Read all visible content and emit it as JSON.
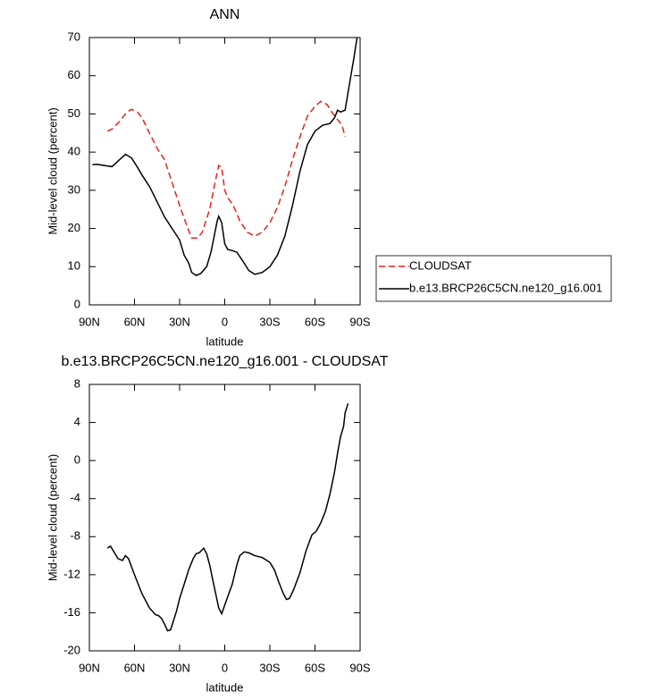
{
  "chart_data": [
    {
      "type": "line",
      "title": "ANN",
      "xlabel": "latitude",
      "ylabel": "Mid-level cloud (percent)",
      "xlim": [
        90,
        -90
      ],
      "ylim": [
        0,
        70
      ],
      "xticks": [
        {
          "value": 90,
          "label": "90N"
        },
        {
          "value": 60,
          "label": "60N"
        },
        {
          "value": 30,
          "label": "30N"
        },
        0,
        {
          "value": -30,
          "label": "30S"
        },
        {
          "value": -60,
          "label": "60S"
        },
        {
          "value": -90,
          "label": "90S"
        }
      ],
      "yticks": [
        0,
        10,
        20,
        30,
        40,
        50,
        60,
        70
      ],
      "legend": "right",
      "series": [
        {
          "name": "CLOUDSAT",
          "color": "#e8211f",
          "line_style": "dashed",
          "x": [
            78,
            75,
            70,
            65,
            62,
            58,
            55,
            50,
            45,
            40,
            35,
            30,
            25,
            22,
            18,
            15,
            10,
            7,
            4,
            2,
            0,
            -2,
            -5,
            -8,
            -10,
            -15,
            -20,
            -25,
            -30,
            -35,
            -40,
            -45,
            -50,
            -55,
            -60,
            -64,
            -68,
            -72,
            -75,
            -78,
            -80
          ],
          "values": [
            45.5,
            46,
            48,
            50.5,
            51.2,
            50.5,
            49,
            45,
            41,
            38,
            32,
            26,
            20.5,
            17.5,
            17.5,
            19,
            25,
            31,
            36.5,
            36,
            30,
            28,
            26.5,
            24,
            22,
            19,
            18,
            19,
            21.5,
            25.5,
            31,
            38,
            44,
            49.5,
            52,
            53.3,
            52.5,
            50,
            48.5,
            47,
            44
          ]
        },
        {
          "name": "b.e13.BRCP26C5CN.ne120_g16.001",
          "color": "#000000",
          "line_style": "solid",
          "x": [
            88,
            85,
            80,
            75,
            70,
            66,
            62,
            58,
            55,
            50,
            45,
            40,
            35,
            30,
            27,
            24,
            22,
            19,
            16,
            12,
            9,
            7,
            5,
            4,
            2,
            0,
            -2,
            -5,
            -8,
            -12,
            -16,
            -20,
            -25,
            -30,
            -35,
            -40,
            -45,
            -50,
            -55,
            -60,
            -65,
            -70,
            -73,
            -75,
            -77,
            -80,
            -83,
            -86,
            -88
          ],
          "values": [
            36.7,
            36.8,
            36.5,
            36.2,
            38,
            39.4,
            38.5,
            36,
            34,
            31,
            27,
            23,
            20,
            17,
            13,
            11,
            8.5,
            7.7,
            8.2,
            10,
            14,
            18,
            22,
            23.2,
            21.5,
            16,
            14.5,
            14.2,
            13.8,
            11.5,
            9,
            8,
            8.5,
            10,
            13,
            18,
            26,
            35,
            42,
            45.5,
            47,
            47.5,
            49,
            51,
            50.5,
            51,
            58,
            65,
            70
          ]
        }
      ]
    },
    {
      "type": "line",
      "title": "b.e13.BRCP26C5CN.ne120_g16.001 - CLOUDSAT",
      "xlabel": "latitude",
      "ylabel": "Mid-level cloud (percent)",
      "xlim": [
        90,
        -90
      ],
      "ylim": [
        -20,
        8
      ],
      "xticks": [
        {
          "value": 90,
          "label": "90N"
        },
        {
          "value": 60,
          "label": "60N"
        },
        {
          "value": 30,
          "label": "30N"
        },
        0,
        {
          "value": -30,
          "label": "30S"
        },
        {
          "value": -60,
          "label": "60S"
        },
        {
          "value": -90,
          "label": "90S"
        }
      ],
      "yticks": [
        -20,
        -16,
        -12,
        -8,
        -4,
        0,
        4,
        8
      ],
      "series": [
        {
          "color": "#000000",
          "line_style": "solid",
          "x": [
            78,
            76,
            74,
            71,
            68,
            66,
            64,
            60,
            55,
            50,
            46,
            44,
            42,
            40,
            38,
            36,
            34,
            32,
            30,
            27,
            24,
            21,
            19,
            17,
            14,
            12,
            10,
            8,
            6,
            4,
            2,
            0,
            -2,
            -5,
            -8,
            -10,
            -13,
            -16,
            -20,
            -25,
            -30,
            -33,
            -36,
            -39,
            -41,
            -43,
            -46,
            -50,
            -54,
            -58,
            -61,
            -64,
            -67,
            -70,
            -73,
            -75,
            -77,
            -79,
            -80,
            -82
          ],
          "values": [
            -9.2,
            -9,
            -9.5,
            -10.3,
            -10.5,
            -10,
            -10.3,
            -12,
            -14,
            -15.5,
            -16.2,
            -16.3,
            -16.6,
            -17.2,
            -17.9,
            -17.8,
            -16.8,
            -15.8,
            -14.5,
            -13,
            -11.5,
            -10.3,
            -9.8,
            -9.7,
            -9.2,
            -9.8,
            -11,
            -12.5,
            -14,
            -15.5,
            -16.1,
            -15.2,
            -14.3,
            -13,
            -11,
            -10,
            -9.6,
            -9.7,
            -10,
            -10.2,
            -10.7,
            -11.5,
            -12.8,
            -14,
            -14.6,
            -14.5,
            -13.5,
            -11.8,
            -9.5,
            -7.8,
            -7.4,
            -6.5,
            -5.3,
            -3.5,
            -1.2,
            0.8,
            2.5,
            3.6,
            5,
            6
          ]
        }
      ]
    }
  ]
}
